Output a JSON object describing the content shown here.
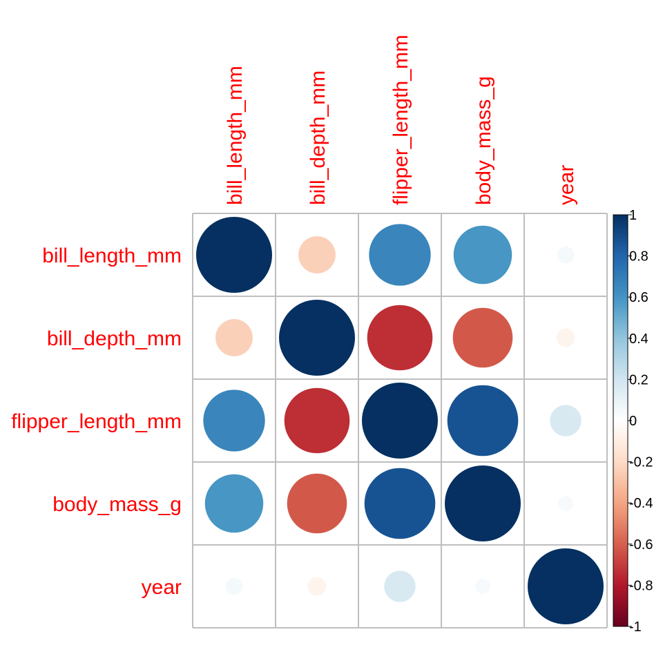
{
  "chart_data": {
    "type": "heatmap",
    "subtype": "correlation-circles",
    "variables": [
      "bill_length_mm",
      "bill_depth_mm",
      "flipper_length_mm",
      "body_mass_g",
      "year"
    ],
    "matrix": [
      [
        1.0,
        -0.24,
        0.66,
        0.59,
        0.05
      ],
      [
        -0.24,
        1.0,
        -0.74,
        -0.62,
        -0.06
      ],
      [
        0.66,
        -0.74,
        1.0,
        0.87,
        0.17
      ],
      [
        0.59,
        -0.62,
        0.87,
        1.0,
        0.04
      ],
      [
        0.05,
        -0.06,
        0.17,
        0.04,
        1.0
      ]
    ],
    "colorbar": {
      "range": [
        -1,
        1
      ],
      "tick_labels": [
        "1",
        "0.8",
        "0.6",
        "0.4",
        "0.2",
        "0",
        "-0.2",
        "-0.4",
        "-0.6",
        "-0.8",
        "-1"
      ],
      "tick_values": [
        1,
        0.8,
        0.6,
        0.4,
        0.2,
        0,
        -0.2,
        -0.4,
        -0.6,
        -0.8,
        -1
      ]
    },
    "colors": {
      "label": "#ff0000",
      "grid": "#bebebe",
      "scale": [
        "#67001F",
        "#B2182B",
        "#D6604D",
        "#F4A582",
        "#FDDBC7",
        "#FFFFFF",
        "#D1E5F0",
        "#92C5DE",
        "#4393C3",
        "#2166AC",
        "#053061"
      ]
    }
  }
}
